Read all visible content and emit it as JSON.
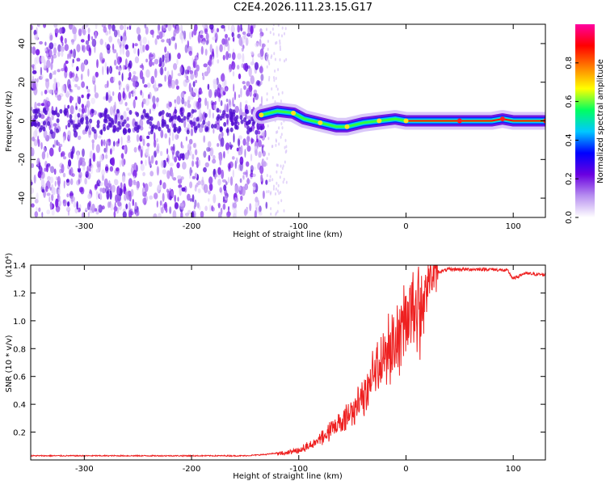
{
  "title": "C2E4.2026.111.23.15.G17",
  "chart_data": [
    {
      "type": "heatmap",
      "xlabel": "Height of straight line (km)",
      "ylabel": "Frequency (Hz)",
      "xlim": [
        -350,
        130
      ],
      "ylim": [
        -50,
        50
      ],
      "xticks": [
        -300,
        -200,
        -100,
        0,
        100
      ],
      "yticks": [
        -40,
        -20,
        0,
        20,
        40
      ],
      "colorbar": {
        "label": "Normalized spectral amplitude",
        "range": [
          0,
          1
        ],
        "ticks": [
          0.0,
          0.2,
          0.4,
          0.6,
          0.8
        ],
        "colors": [
          "#ffffff",
          "#b890f0",
          "#6a00e0",
          "#0000ff",
          "#00c8ff",
          "#00ff60",
          "#ffff00",
          "#ff8000",
          "#ff0000",
          "#ff00a0"
        ]
      },
      "noise_region_x": [
        -350,
        -130
      ],
      "signal_track": [
        {
          "x": -135,
          "y": 3
        },
        {
          "x": -120,
          "y": 5
        },
        {
          "x": -105,
          "y": 4
        },
        {
          "x": -95,
          "y": 1
        },
        {
          "x": -80,
          "y": -1
        },
        {
          "x": -65,
          "y": -3
        },
        {
          "x": -55,
          "y": -3
        },
        {
          "x": -40,
          "y": -1
        },
        {
          "x": -25,
          "y": 0
        },
        {
          "x": -10,
          "y": 1
        },
        {
          "x": 0,
          "y": 0
        },
        {
          "x": 20,
          "y": 0
        },
        {
          "x": 50,
          "y": 0
        },
        {
          "x": 80,
          "y": 0
        },
        {
          "x": 90,
          "y": 1
        },
        {
          "x": 100,
          "y": 0
        },
        {
          "x": 130,
          "y": 0
        }
      ]
    },
    {
      "type": "line",
      "xlabel": "Height of straight line (km)",
      "ylabel": "SNR (10 * v/v)",
      "multiplier": "(x10⁴)",
      "xlim": [
        -350,
        130
      ],
      "ylim": [
        0,
        1.4
      ],
      "xticks": [
        -300,
        -200,
        -100,
        0,
        100
      ],
      "yticks": [
        0.2,
        0.4,
        0.6,
        0.8,
        1.0,
        1.2,
        1.4
      ],
      "color": "#ee2020",
      "series": [
        {
          "x": [
            -350,
            -300,
            -250,
            -200,
            -150,
            -130,
            -110,
            -100,
            -90,
            -80,
            -70,
            -60,
            -50,
            -40,
            -30,
            -20,
            -10,
            0,
            10,
            20,
            30,
            40,
            60,
            80,
            95,
            100,
            110,
            130
          ],
          "y": [
            0.03,
            0.03,
            0.03,
            0.03,
            0.03,
            0.04,
            0.06,
            0.08,
            0.12,
            0.18,
            0.25,
            0.32,
            0.4,
            0.52,
            0.72,
            0.88,
            1.02,
            1.15,
            1.24,
            1.3,
            1.35,
            1.37,
            1.37,
            1.37,
            1.36,
            1.3,
            1.34,
            1.33
          ]
        }
      ]
    }
  ]
}
